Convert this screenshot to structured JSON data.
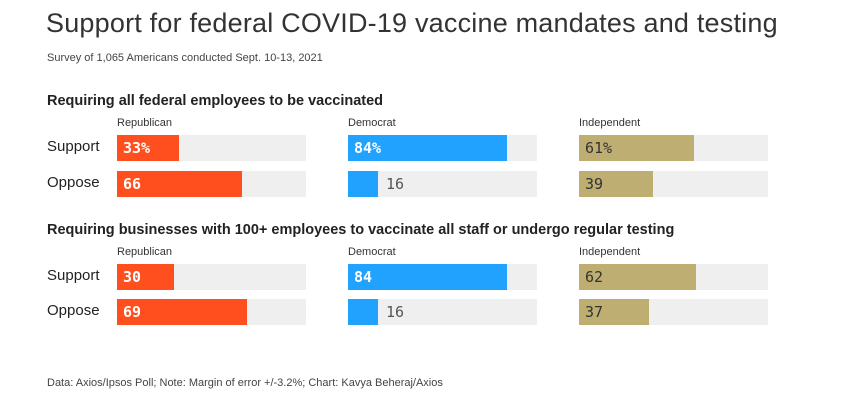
{
  "title": "Support for federal COVID-19 vaccine mandates and testing",
  "subtitle": "Survey of 1,065 Americans conducted Sept. 10-13, 2021",
  "footer": "Data: Axios/Ipsos Poll; Note: Margin of error +/-3.2%; Chart: Kavya Beheraj/Axios",
  "colors": {
    "republican": "#ff4f1f",
    "democrat": "#22a2ff",
    "independent": "#bfae72",
    "track": "#efefef"
  },
  "chart_data": {
    "type": "bar",
    "orientation": "horizontal",
    "parties": [
      "Republican",
      "Democrat",
      "Independent"
    ],
    "rows": [
      "Support",
      "Oppose"
    ],
    "xlim": [
      0,
      100
    ],
    "panels": [
      {
        "title": "Requiring all federal employees to be vaccinated",
        "values": {
          "Republican": {
            "Support": 33,
            "Oppose": 66
          },
          "Democrat": {
            "Support": 84,
            "Oppose": 16
          },
          "Independent": {
            "Support": 61,
            "Oppose": 39
          }
        },
        "labels": {
          "Republican": {
            "Support": "33%",
            "Oppose": "66"
          },
          "Democrat": {
            "Support": "84%",
            "Oppose": "16"
          },
          "Independent": {
            "Support": "61%",
            "Oppose": "39"
          }
        }
      },
      {
        "title": "Requiring businesses with 100+ employees to vaccinate all staff or undergo regular testing",
        "values": {
          "Republican": {
            "Support": 30,
            "Oppose": 69
          },
          "Democrat": {
            "Support": 84,
            "Oppose": 16
          },
          "Independent": {
            "Support": 62,
            "Oppose": 37
          }
        },
        "labels": {
          "Republican": {
            "Support": "30",
            "Oppose": "69"
          },
          "Democrat": {
            "Support": "84",
            "Oppose": "16"
          },
          "Independent": {
            "Support": "62",
            "Oppose": "37"
          }
        }
      }
    ]
  }
}
